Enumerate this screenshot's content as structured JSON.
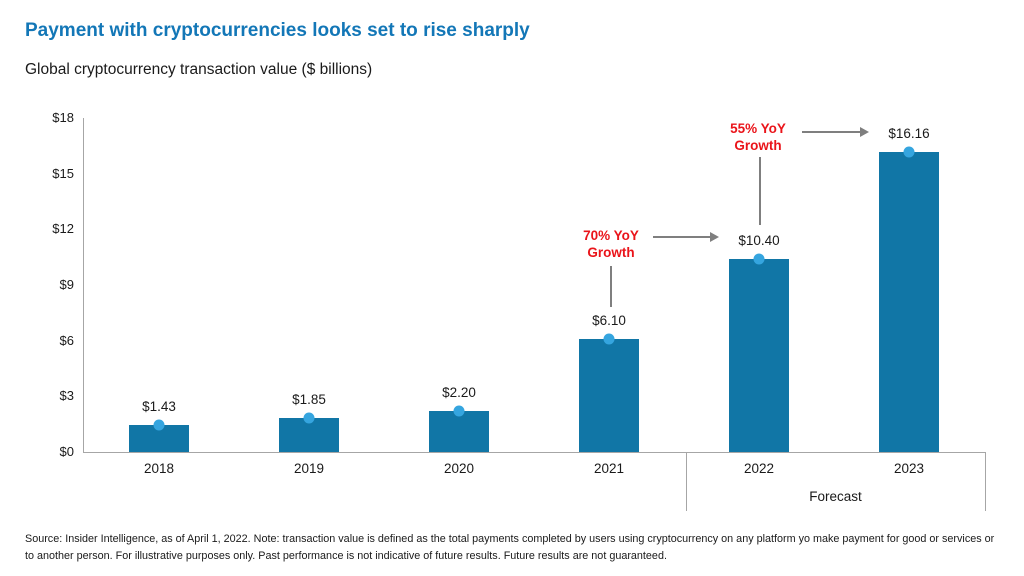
{
  "page": {
    "title": "Payment with cryptocurrencies looks set to rise sharply",
    "subtitle": "Global cryptocurrency transaction value ($ billions)",
    "source_note": "Source: Insider Intelligence, as of April 1, 2022. Note: transaction value is defined as the total payments completed by users using cryptocurrency on any platform yo make payment for good or services or to another person. For illustrative purposes only. Past performance is not indicative of future results. Future results are not guaranteed."
  },
  "colors": {
    "title_blue": "#1377b7",
    "bar_blue": "#1176a6",
    "marker_blue": "#35a5df",
    "annotation_red": "#ea141a",
    "arrow_gray": "#7f7f7f",
    "axis_gray": "#a6a6a6"
  },
  "chart_data": {
    "type": "bar",
    "title": "Global cryptocurrency transaction value ($ billions)",
    "categories": [
      "2018",
      "2019",
      "2020",
      "2021",
      "2022",
      "2023"
    ],
    "values": [
      1.43,
      1.85,
      2.2,
      6.1,
      10.4,
      16.16
    ],
    "value_labels": [
      "$1.43",
      "$1.85",
      "$2.20",
      "$6.10",
      "$10.40",
      "$16.16"
    ],
    "xlabel": "",
    "ylabel": "",
    "ylim": [
      0,
      18
    ],
    "ytick_step": 3,
    "ytick_labels": [
      "$0",
      "$3",
      "$6",
      "$9",
      "$12",
      "$15",
      "$18"
    ],
    "grid": false,
    "legend": "none",
    "marker": "circle-on-bar-top",
    "forecast": {
      "label": "Forecast",
      "categories": [
        "2022",
        "2023"
      ]
    },
    "annotations": [
      {
        "text_line1": "70% YoY",
        "text_line2": "Growth",
        "over_category": "2021",
        "points_to": "2022"
      },
      {
        "text_line1": "55% YoY",
        "text_line2": "Growth",
        "over_category": "2022",
        "points_to": "2023"
      }
    ]
  }
}
